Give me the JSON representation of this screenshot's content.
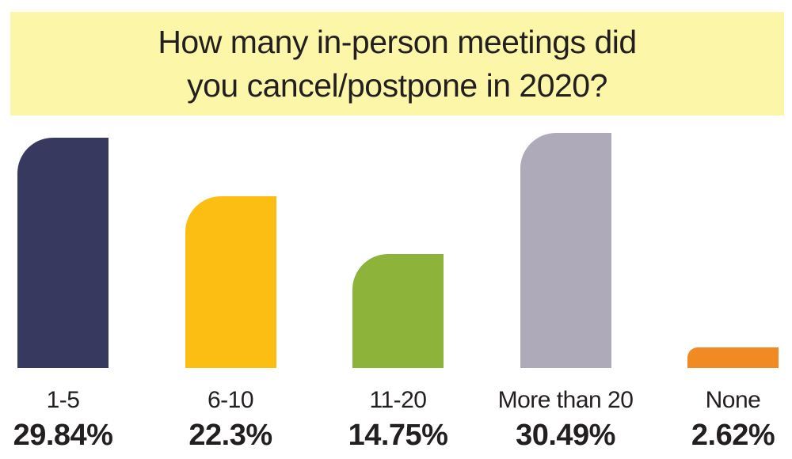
{
  "title": {
    "text": "How many in-person meetings did you cancel/postpone in 2020?",
    "lines": [
      "How many in-person meetings did",
      "you cancel/postpone in 2020?"
    ],
    "banner_color": "#FCF6A9",
    "text_color": "#231F20"
  },
  "chart_data": {
    "type": "bar",
    "orientation": "vertical",
    "title": "How many in-person meetings did you cancel/postpone in 2020?",
    "categories": [
      "1-5",
      "6-10",
      "11-20",
      "More than 20",
      "None"
    ],
    "values": [
      29.84,
      22.3,
      14.75,
      30.49,
      2.62
    ],
    "value_labels": [
      "29.84%",
      "22.3%",
      "14.75%",
      "30.49%",
      "2.62%"
    ],
    "bar_colors": [
      "#373A5E",
      "#FCBE13",
      "#8DB33B",
      "#AFAAB9",
      "#F18A22"
    ],
    "xlabel": "",
    "ylabel": "",
    "ylim": [
      0,
      30.49
    ],
    "grid": false,
    "legend": false,
    "axes_visible": false,
    "label_text_color": "#231F20"
  }
}
